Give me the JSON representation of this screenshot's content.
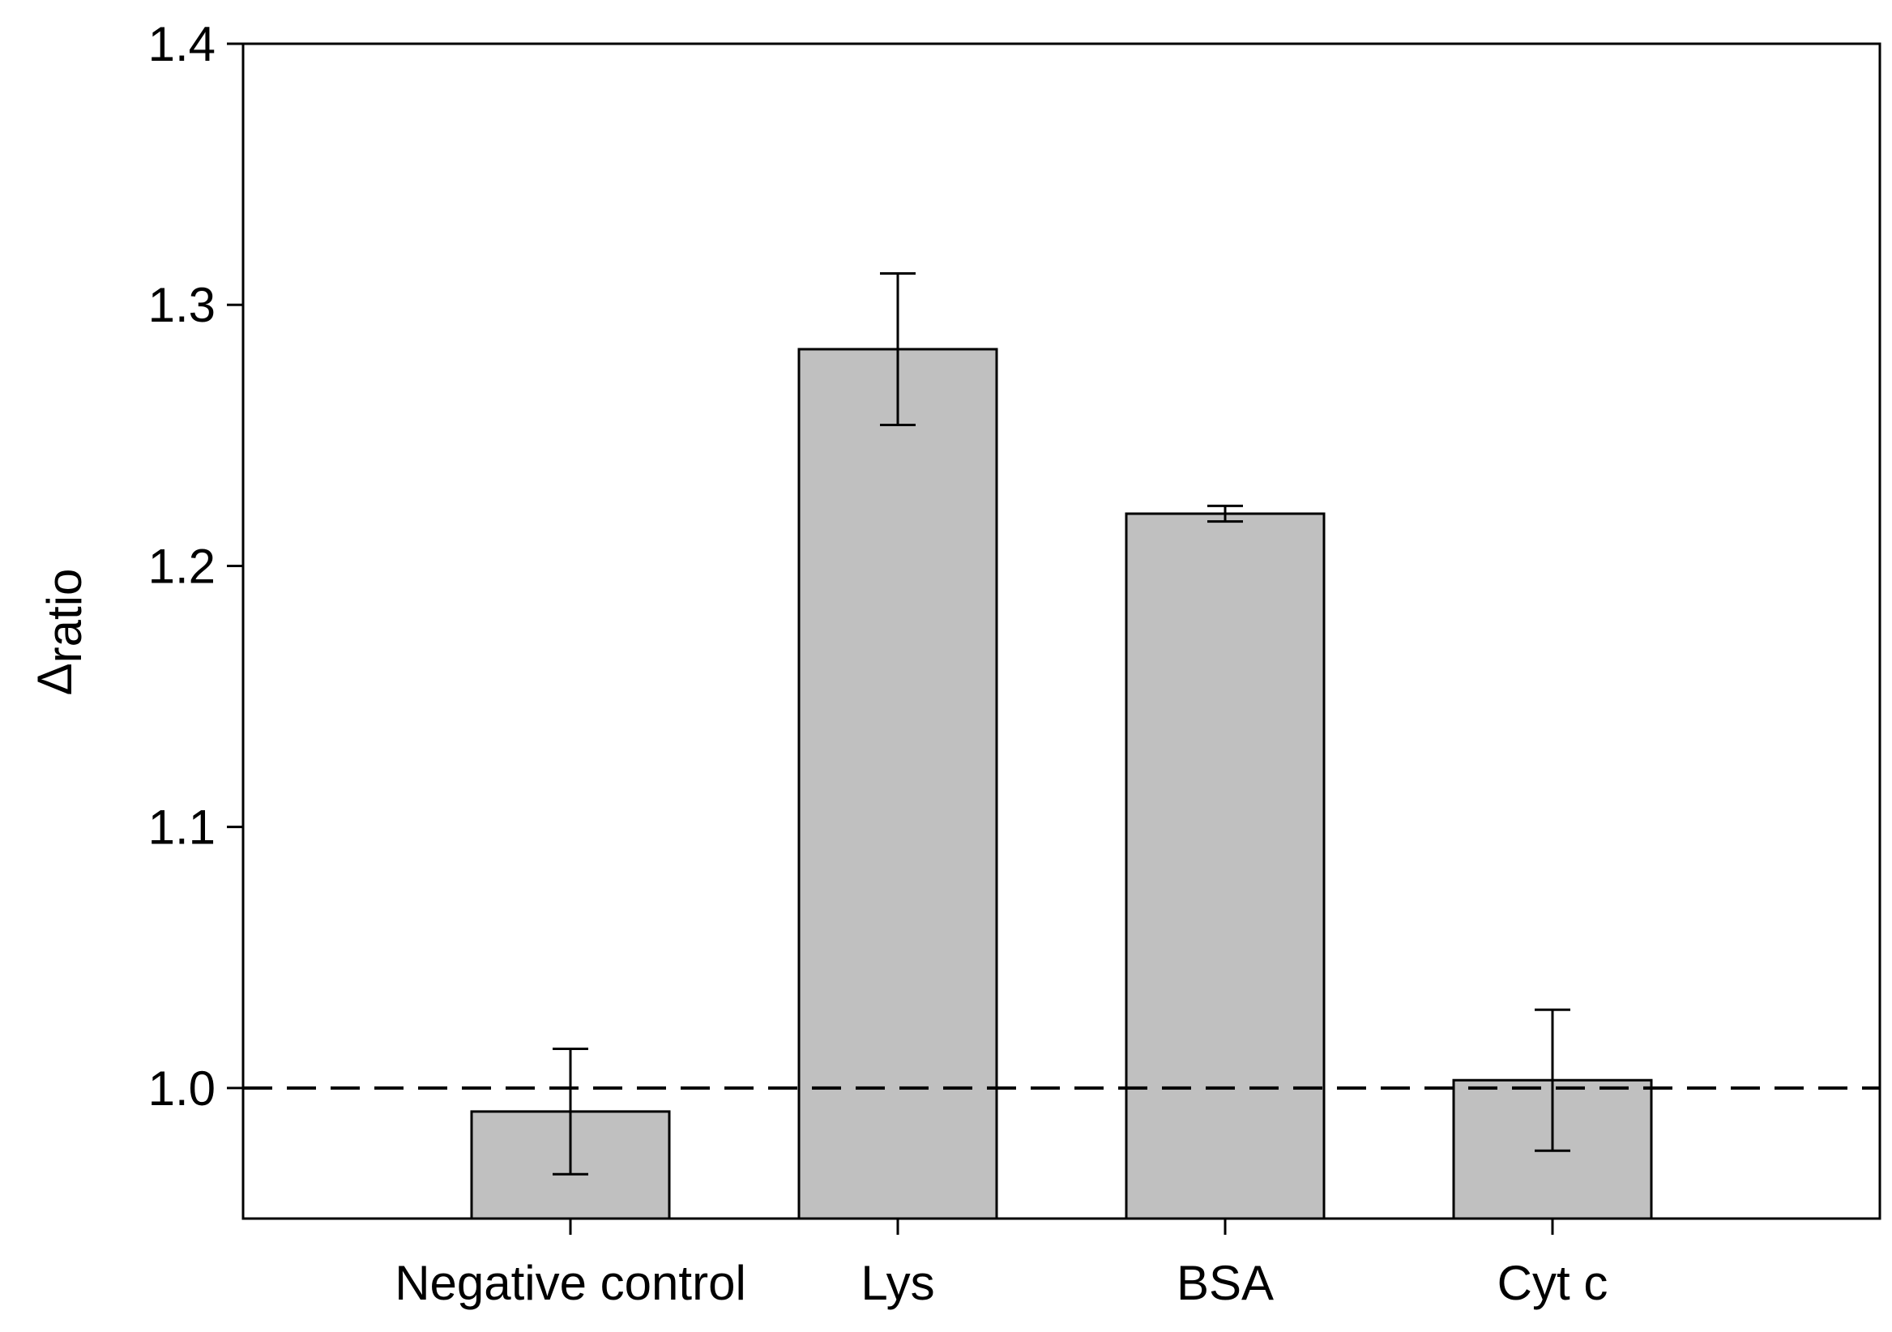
{
  "chart_data": {
    "type": "bar",
    "title": "",
    "xlabel": "",
    "ylabel": {
      "symbol": "Δ",
      "subscript": "ratio"
    },
    "categories": [
      "Negative control",
      "Lys",
      "BSA",
      "Cyt c"
    ],
    "values": [
      0.991,
      1.283,
      1.22,
      1.003
    ],
    "errors": [
      0.024,
      0.029,
      0.003,
      0.027
    ],
    "ylim": [
      0.95,
      1.4
    ],
    "yticks": [
      1.0,
      1.1,
      1.2,
      1.3,
      1.4
    ],
    "ytick_labels": [
      "1.0",
      "1.1",
      "1.2",
      "1.3",
      "1.4"
    ],
    "reference_line": {
      "value": 1.0,
      "style": "dashed"
    },
    "grid": false,
    "legend": null
  },
  "colors": {
    "bar_fill": "#c0c0c0",
    "bar_stroke": "#000000",
    "axis": "#000000",
    "background": "#ffffff"
  }
}
